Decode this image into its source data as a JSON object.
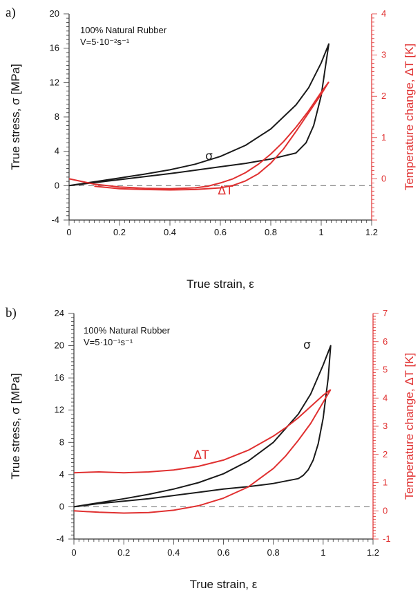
{
  "chart_data": [
    {
      "type": "line",
      "panel_label": "a)",
      "annotation_lines": [
        "100% Natural Rubber",
        "V=5·10⁻²s⁻¹"
      ],
      "xlabel": "True strain, ε",
      "ylabel": "True stress, σ [MPa]",
      "y2label": "Temperature change, ΔT [K]",
      "xlim": [
        0,
        1.2
      ],
      "ylim": [
        -4,
        20
      ],
      "y2lim": [
        -1,
        4
      ],
      "xticks": [
        "0",
        "0.2",
        "0.4",
        "0.6",
        "0.8",
        "1",
        "1.2"
      ],
      "yticks": [
        "-4",
        "0",
        "4",
        "8",
        "12",
        "16",
        "20"
      ],
      "y2ticks": [
        "4",
        "3",
        "2",
        "1",
        "0"
      ],
      "reference_line": {
        "axis": "y",
        "value": 0,
        "style": "dashed"
      },
      "colors": {
        "stress": "#1a1a1a",
        "temperature": "#e03030",
        "axis": "#333333"
      },
      "series": [
        {
          "label": "σ",
          "axis": "left",
          "color": "#1a1a1a",
          "label_pos": [
            0.54,
            3.0
          ],
          "x": [
            0,
            0.1,
            0.2,
            0.3,
            0.4,
            0.5,
            0.6,
            0.7,
            0.8,
            0.9,
            0.95,
            1.0,
            1.03,
            1.02,
            1.0,
            0.97,
            0.94,
            0.9,
            0.8,
            0.7,
            0.6,
            0.5,
            0.4,
            0.3,
            0.2,
            0.1,
            0
          ],
          "y": [
            0,
            0.45,
            0.9,
            1.35,
            1.85,
            2.5,
            3.4,
            4.7,
            6.6,
            9.4,
            11.4,
            14.3,
            16.5,
            14.5,
            10.5,
            7.0,
            5.0,
            3.8,
            3.1,
            2.6,
            2.2,
            1.8,
            1.4,
            1.05,
            0.7,
            0.35,
            0
          ]
        },
        {
          "label": "ΔT",
          "axis": "right",
          "color": "#e03030",
          "label_pos": [
            0.59,
            -0.38
          ],
          "x": [
            1.03,
            1.0,
            0.95,
            0.9,
            0.85,
            0.8,
            0.75,
            0.7,
            0.65,
            0.6,
            0.5,
            0.4,
            0.3,
            0.2,
            0.1
          ],
          "y": [
            2.35,
            2.05,
            1.6,
            1.15,
            0.72,
            0.38,
            0.12,
            -0.05,
            -0.16,
            -0.22,
            -0.26,
            -0.27,
            -0.26,
            -0.24,
            -0.18
          ]
        },
        {
          "label": "",
          "axis": "right",
          "color": "#e03030",
          "x": [
            0,
            0.1,
            0.2,
            0.3,
            0.4,
            0.5,
            0.55,
            0.6,
            0.65,
            0.7,
            0.75,
            0.8,
            0.85,
            0.9,
            0.95,
            1.0,
            1.03
          ],
          "y": [
            0,
            -0.13,
            -0.2,
            -0.23,
            -0.24,
            -0.22,
            -0.18,
            -0.1,
            0.0,
            0.15,
            0.35,
            0.6,
            0.9,
            1.25,
            1.65,
            2.1,
            2.35
          ]
        }
      ]
    },
    {
      "type": "line",
      "panel_label": "b)",
      "annotation_lines": [
        "100% Natural Rubber",
        "V=5·10⁻¹s⁻¹"
      ],
      "xlabel": "True strain, ε",
      "ylabel": "True stress, σ [MPa]",
      "y2label": "Temperature change, ΔT [K]",
      "xlim": [
        0,
        1.2
      ],
      "ylim": [
        -4,
        24
      ],
      "y2lim": [
        -1,
        7
      ],
      "xticks": [
        "0",
        "0.2",
        "0.4",
        "0.6",
        "0.8",
        "1",
        "1.2"
      ],
      "yticks": [
        "-4",
        "0",
        "4",
        "8",
        "12",
        "16",
        "20",
        "24"
      ],
      "y2ticks": [
        "7",
        "6",
        "5",
        "4",
        "3",
        "2",
        "1",
        "0",
        "-1"
      ],
      "reference_line": {
        "axis": "y",
        "value": 0,
        "style": "dashed"
      },
      "colors": {
        "stress": "#1a1a1a",
        "temperature": "#e03030",
        "axis": "#333333"
      },
      "series": [
        {
          "label": "σ",
          "axis": "left",
          "color": "#1a1a1a",
          "label_pos": [
            0.92,
            19.6
          ],
          "x": [
            0,
            0.1,
            0.2,
            0.3,
            0.4,
            0.5,
            0.6,
            0.7,
            0.8,
            0.9,
            0.95,
            1.0,
            1.03,
            1.02,
            1.0,
            0.98,
            0.96,
            0.94,
            0.92,
            0.9,
            0.8,
            0.7,
            0.6,
            0.5,
            0.4,
            0.3,
            0.2,
            0.1,
            0
          ],
          "y": [
            0,
            0.5,
            1.0,
            1.55,
            2.2,
            3.0,
            4.1,
            5.7,
            8.0,
            11.5,
            14.0,
            17.6,
            20.0,
            16.0,
            11.0,
            7.8,
            5.8,
            4.6,
            3.9,
            3.5,
            2.9,
            2.5,
            2.2,
            1.8,
            1.4,
            1.0,
            0.7,
            0.4,
            0
          ]
        },
        {
          "label": "ΔT",
          "axis": "right",
          "color": "#e03030",
          "label_pos": [
            0.48,
            1.85
          ],
          "x": [
            0,
            0.1,
            0.2,
            0.3,
            0.4,
            0.5,
            0.6,
            0.7,
            0.8,
            0.85,
            0.9,
            0.95,
            1.0,
            1.03
          ],
          "y": [
            1.35,
            1.38,
            1.35,
            1.38,
            1.45,
            1.58,
            1.8,
            2.15,
            2.65,
            2.95,
            3.3,
            3.7,
            4.1,
            4.3
          ]
        },
        {
          "label": "",
          "axis": "right",
          "color": "#e03030",
          "x": [
            0,
            0.1,
            0.2,
            0.3,
            0.4,
            0.5,
            0.6,
            0.7,
            0.8,
            0.85,
            0.9,
            0.95,
            1.0,
            1.03
          ],
          "y": [
            0,
            -0.05,
            -0.08,
            -0.06,
            0.02,
            0.18,
            0.45,
            0.85,
            1.5,
            1.95,
            2.5,
            3.1,
            3.85,
            4.3
          ]
        }
      ]
    }
  ]
}
